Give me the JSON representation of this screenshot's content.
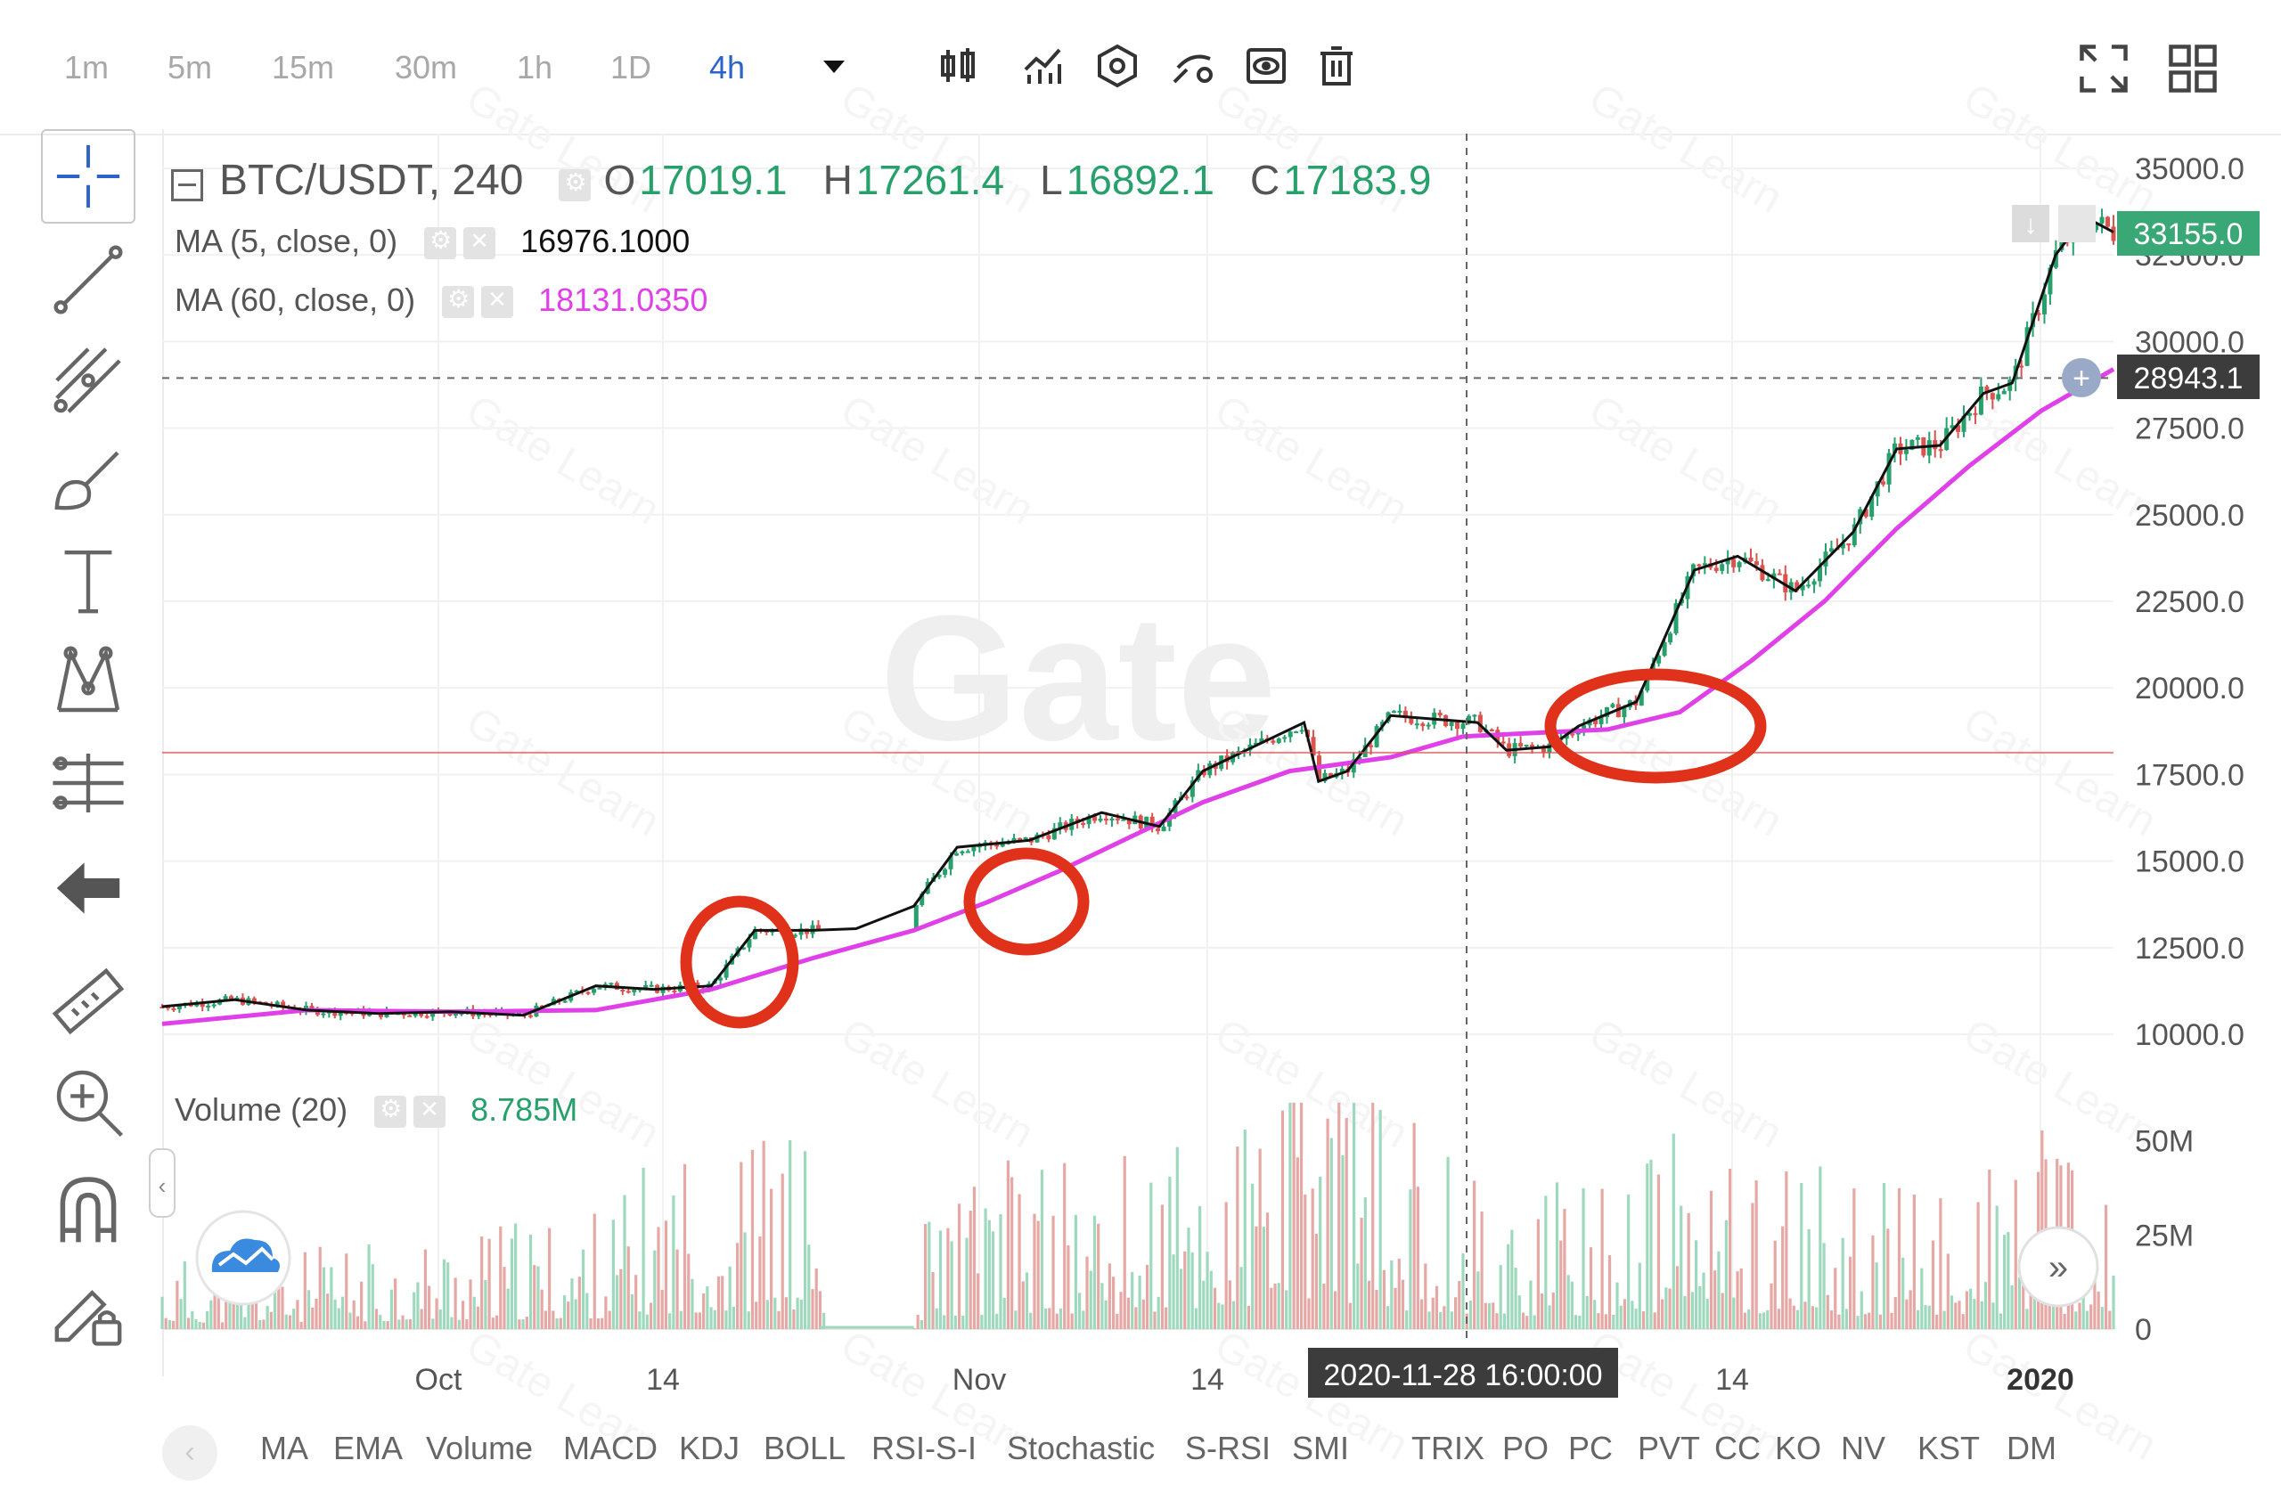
{
  "timeframes": [
    {
      "label": "1m",
      "active": false
    },
    {
      "label": "5m",
      "active": false
    },
    {
      "label": "15m",
      "active": false
    },
    {
      "label": "30m",
      "active": false
    },
    {
      "label": "1h",
      "active": false
    },
    {
      "label": "1D",
      "active": false
    },
    {
      "label": "4h",
      "active": true
    }
  ],
  "toolbar_icons": [
    "dropdown-arrow-icon",
    "candles-icon",
    "indicators-icon",
    "settings-hex-icon",
    "template-icon",
    "eye-icon",
    "trash-icon",
    "fullscreen-icon",
    "layout-grid-icon"
  ],
  "left_tools": [
    "crosshair-icon",
    "trend-line-icon",
    "pitchfork-icon",
    "brush-icon",
    "text-icon",
    "pattern-icon",
    "measure-icon",
    "back-arrow-icon",
    "ruler-icon",
    "zoom-in-icon",
    "magnet-icon",
    "lock-pencil-icon"
  ],
  "legend": {
    "symbol": "BTC/USDT, 240",
    "open_label": "O",
    "open": "17019.1",
    "high_label": "H",
    "high": "17261.4",
    "low_label": "L",
    "low": "16892.1",
    "close_label": "C",
    "close": "17183.9",
    "ma5_label": "MA (5, close, 0)",
    "ma5_value": "16976.1000",
    "ma60_label": "MA (60, close, 0)",
    "ma60_value": "18131.0350",
    "volume_label": "Volume (20)",
    "volume_value": "8.785M"
  },
  "watermark": "Gate",
  "watermark_small": "Gate Learn",
  "price_badge_last": "33155.0",
  "price_badge_cross": "28943.1",
  "crosshair_time": "2020-11-28 16:00:00",
  "colors": {
    "up": "#27a06c",
    "down": "#d9534f",
    "ma5": "#111111",
    "ma60": "#e040e8",
    "circle": "#e0311b",
    "accent": "#2b63c9"
  },
  "indicators": [
    "MA",
    "EMA",
    "Volume",
    "MACD",
    "KDJ",
    "BOLL",
    "RSI-S-I",
    "Stochastic",
    "S-RSI",
    "SMI",
    "TRIX",
    "PO",
    "PC",
    "PVT",
    "CC",
    "KO",
    "NV",
    "KST",
    "DM"
  ],
  "chart_data": {
    "type": "candlestick",
    "x_ticks": [
      "Oct",
      "14",
      "Nov",
      "14",
      "14",
      "2020"
    ],
    "y_ticks": [
      "35000.0",
      "32500.0",
      "30000.0",
      "27500.0",
      "25000.0",
      "22500.0",
      "20000.0",
      "17500.0",
      "15000.0",
      "12500.0",
      "10000.0"
    ],
    "ylim": [
      9000,
      36000
    ],
    "volume_ticks": [
      "50M",
      "25M",
      "0"
    ],
    "volume_ylim": [
      0,
      62
    ],
    "horizontal_line_price": 18131,
    "crosshair_price": 28943.1,
    "ma5_path": [
      [
        0,
        10800
      ],
      [
        0.05,
        11000
      ],
      [
        0.1,
        10700
      ],
      [
        0.15,
        10600
      ],
      [
        0.2,
        10650
      ],
      [
        0.25,
        10550
      ],
      [
        0.3,
        11400
      ],
      [
        0.34,
        11300
      ],
      [
        0.38,
        11400
      ],
      [
        0.41,
        13000
      ],
      [
        0.45,
        13000
      ],
      [
        0.48,
        13050
      ],
      [
        0.52,
        13700
      ],
      [
        0.55,
        15400
      ],
      [
        0.6,
        15600
      ],
      [
        0.65,
        16400
      ],
      [
        0.69,
        16000
      ],
      [
        0.72,
        17600
      ],
      [
        0.76,
        18400
      ],
      [
        0.79,
        19000
      ],
      [
        0.8,
        17300
      ],
      [
        0.82,
        17600
      ],
      [
        0.85,
        19200
      ],
      [
        0.88,
        19100
      ],
      [
        0.91,
        19000
      ],
      [
        0.93,
        18200
      ],
      [
        0.96,
        18300
      ],
      [
        0.98,
        18900
      ],
      [
        1.02,
        19600
      ],
      [
        1.06,
        23400
      ],
      [
        1.09,
        23800
      ],
      [
        1.13,
        22800
      ],
      [
        1.17,
        24500
      ],
      [
        1.2,
        26900
      ],
      [
        1.23,
        27000
      ],
      [
        1.26,
        28500
      ],
      [
        1.28,
        28800
      ],
      [
        1.31,
        32500
      ],
      [
        1.33,
        33600
      ],
      [
        1.35,
        33155
      ]
    ],
    "ma60_path": [
      [
        0,
        10300
      ],
      [
        0.1,
        10700
      ],
      [
        0.2,
        10650
      ],
      [
        0.3,
        10700
      ],
      [
        0.38,
        11300
      ],
      [
        0.45,
        12200
      ],
      [
        0.52,
        13000
      ],
      [
        0.57,
        13800
      ],
      [
        0.62,
        14700
      ],
      [
        0.67,
        15700
      ],
      [
        0.72,
        16700
      ],
      [
        0.78,
        17600
      ],
      [
        0.85,
        18000
      ],
      [
        0.9,
        18600
      ],
      [
        0.95,
        18700
      ],
      [
        1.0,
        18800
      ],
      [
        1.05,
        19300
      ],
      [
        1.1,
        20800
      ],
      [
        1.15,
        22500
      ],
      [
        1.2,
        24600
      ],
      [
        1.25,
        26400
      ],
      [
        1.3,
        28000
      ],
      [
        1.35,
        29200
      ]
    ],
    "series_note": "",
    "volume_profile": [
      [
        0,
        0.18
      ],
      [
        0.1,
        0.2
      ],
      [
        0.2,
        0.25
      ],
      [
        0.3,
        0.3
      ],
      [
        0.35,
        0.45
      ],
      [
        0.4,
        0.5
      ],
      [
        0.45,
        0.5
      ],
      [
        0.46,
        0.0
      ],
      [
        0.52,
        0.0
      ],
      [
        0.53,
        0.35
      ],
      [
        0.6,
        0.45
      ],
      [
        0.65,
        0.4
      ],
      [
        0.7,
        0.5
      ],
      [
        0.75,
        0.55
      ],
      [
        0.8,
        0.9
      ],
      [
        0.85,
        0.55
      ],
      [
        0.9,
        0.45
      ],
      [
        0.95,
        0.35
      ],
      [
        1.0,
        0.4
      ],
      [
        1.05,
        0.5
      ],
      [
        1.1,
        0.45
      ],
      [
        1.15,
        0.4
      ],
      [
        1.2,
        0.35
      ],
      [
        1.25,
        0.4
      ],
      [
        1.3,
        0.5
      ],
      [
        1.35,
        0.3
      ]
    ]
  }
}
